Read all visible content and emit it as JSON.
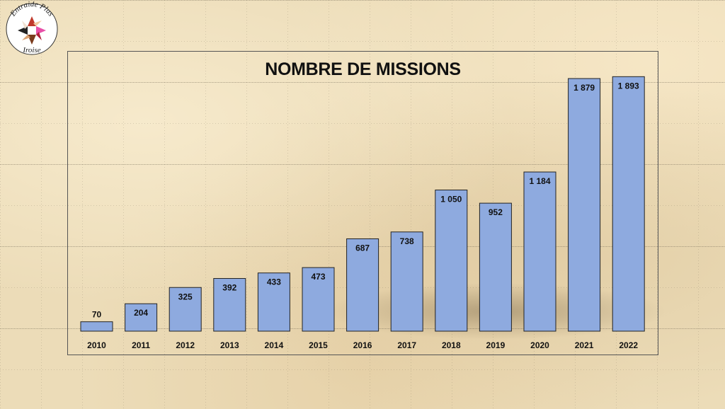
{
  "logo": {
    "text_top": "Entraide Plus",
    "text_bottom": "Iroise"
  },
  "chart_data": {
    "type": "bar",
    "title": "NOMBRE DE MISSIONS",
    "xlabel": "",
    "ylabel": "",
    "categories": [
      "2010",
      "2011",
      "2012",
      "2013",
      "2014",
      "2015",
      "2016",
      "2017",
      "2018",
      "2019",
      "2020",
      "2021",
      "2022"
    ],
    "values": [
      70,
      204,
      325,
      392,
      433,
      473,
      687,
      738,
      1050,
      952,
      1184,
      1879,
      1893
    ],
    "value_labels": [
      "70",
      "204",
      "325",
      "392",
      "433",
      "473",
      "687",
      "738",
      "1 050",
      "952",
      "1 184",
      "1 879",
      "1 893"
    ],
    "ylim": [
      0,
      2000
    ],
    "grid": false,
    "bar_color": "#8eaadf"
  }
}
